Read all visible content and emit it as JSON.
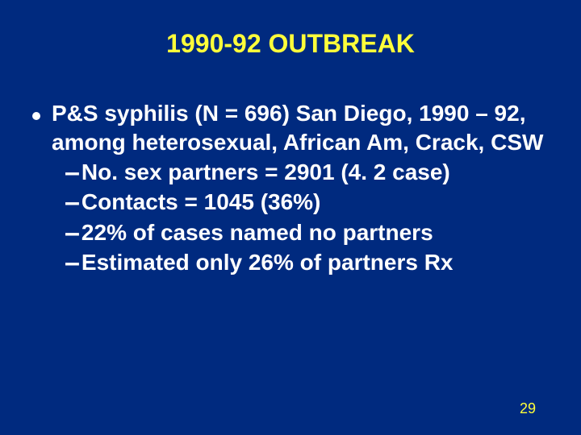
{
  "colors": {
    "background": "#002a7f",
    "heading": "#ffff3a",
    "body_text": "#ffffff",
    "page_number": "#ffff3a"
  },
  "typography": {
    "title_fontsize": 32,
    "body_fontsize": 28,
    "dash_fontsize": 34,
    "pagenum_fontsize": 18
  },
  "title": "1990-92 OUTBREAK",
  "bullet": {
    "main": "P&S syphilis (N = 696) San Diego, 1990 – 92, among heterosexual, African Am, Crack, CSW",
    "subs": [
      "No. sex partners = 2901 (4. 2 case)",
      "Contacts = 1045 (36%)",
      "22% of cases named no partners",
      "Estimated only 26% of partners Rx"
    ]
  },
  "page_number": "29"
}
